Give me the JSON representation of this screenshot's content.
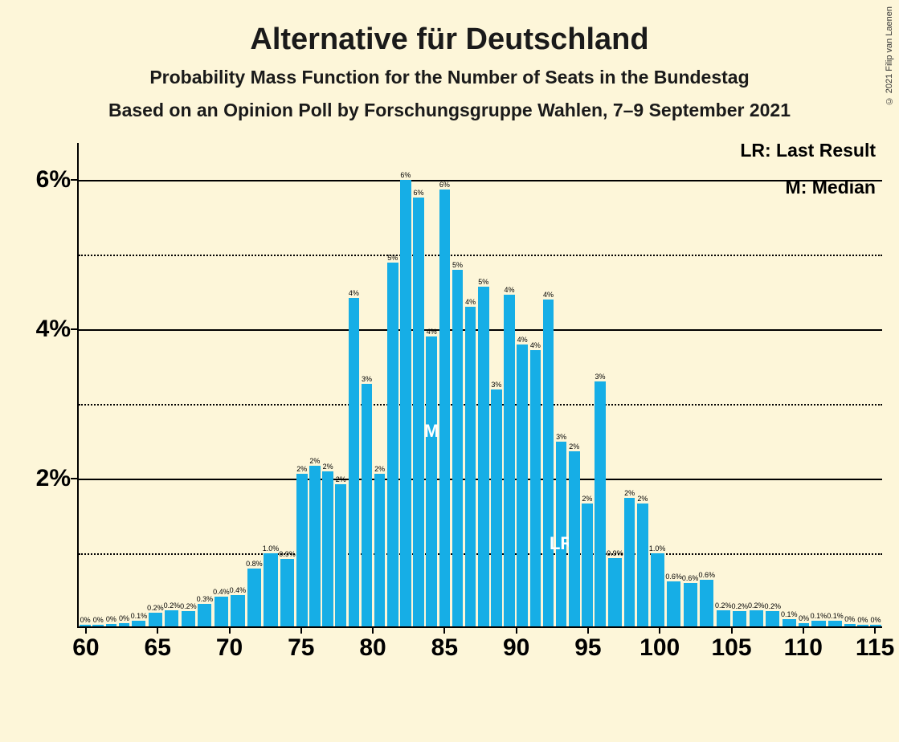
{
  "title": "Alternative für Deutschland",
  "subtitle1": "Probability Mass Function for the Number of Seats in the Bundestag",
  "subtitle2": "Based on an Opinion Poll by Forschungsgruppe Wahlen, 7–9 September 2021",
  "copyright": "© 2021 Filip van Laenen",
  "legend": {
    "lr": "LR: Last Result",
    "m": "M: Median"
  },
  "chart": {
    "type": "bar",
    "bar_color": "#16aee6",
    "background_color": "#fdf6d9",
    "grid_solid_color": "#000000",
    "grid_dotted_color": "#000000",
    "axis_color": "#000000",
    "x_start": 60,
    "x_end": 115,
    "ylim": [
      0,
      6.5
    ],
    "ytick_major": [
      2,
      4,
      6
    ],
    "ytick_minor": [
      1,
      3,
      5
    ],
    "xtick_major": [
      60,
      65,
      70,
      75,
      80,
      85,
      90,
      95,
      100,
      105,
      110,
      115
    ],
    "median_seat": 84,
    "lr_seat": 94,
    "title_fontsize": 38,
    "subtitle_fontsize": 23,
    "axis_label_fontsize": 30,
    "bar_label_fontsize": 9,
    "bars": [
      {
        "x": 60,
        "v": 0.02,
        "l": "0%"
      },
      {
        "x": 61,
        "v": 0.02,
        "l": "0%"
      },
      {
        "x": 62,
        "v": 0.03,
        "l": "0%"
      },
      {
        "x": 63,
        "v": 0.04,
        "l": "0%"
      },
      {
        "x": 64,
        "v": 0.08,
        "l": "0.1%"
      },
      {
        "x": 65,
        "v": 0.18,
        "l": "0.2%"
      },
      {
        "x": 66,
        "v": 0.22,
        "l": "0.2%"
      },
      {
        "x": 67,
        "v": 0.2,
        "l": "0.2%"
      },
      {
        "x": 68,
        "v": 0.3,
        "l": "0.3%"
      },
      {
        "x": 69,
        "v": 0.4,
        "l": "0.4%"
      },
      {
        "x": 70,
        "v": 0.42,
        "l": "0.4%"
      },
      {
        "x": 71,
        "v": 0.78,
        "l": "0.8%"
      },
      {
        "x": 72,
        "v": 0.98,
        "l": "1.0%"
      },
      {
        "x": 73,
        "v": 0.9,
        "l": "0.9%"
      },
      {
        "x": 74,
        "v": 2.05,
        "l": "2%"
      },
      {
        "x": 75,
        "v": 2.15,
        "l": "2%"
      },
      {
        "x": 76,
        "v": 2.08,
        "l": "2%"
      },
      {
        "x": 77,
        "v": 1.9,
        "l": "2%"
      },
      {
        "x": 78,
        "v": 4.4,
        "l": "4%"
      },
      {
        "x": 79,
        "v": 3.25,
        "l": "3%"
      },
      {
        "x": 80,
        "v": 2.05,
        "l": "2%"
      },
      {
        "x": 81,
        "v": 4.88,
        "l": "5%"
      },
      {
        "x": 82,
        "v": 5.98,
        "l": "6%"
      },
      {
        "x": 83,
        "v": 5.75,
        "l": "6%"
      },
      {
        "x": 84,
        "v": 3.88,
        "l": "4%"
      },
      {
        "x": 85,
        "v": 5.85,
        "l": "6%"
      },
      {
        "x": 86,
        "v": 4.78,
        "l": "5%"
      },
      {
        "x": 87,
        "v": 4.28,
        "l": "4%"
      },
      {
        "x": 88,
        "v": 4.55,
        "l": "5%"
      },
      {
        "x": 89,
        "v": 3.18,
        "l": "3%"
      },
      {
        "x": 90,
        "v": 4.45,
        "l": "4%"
      },
      {
        "x": 91,
        "v": 3.78,
        "l": "4%"
      },
      {
        "x": 92,
        "v": 3.7,
        "l": "4%"
      },
      {
        "x": 93,
        "v": 4.38,
        "l": "4%"
      },
      {
        "x": 94,
        "v": 2.48,
        "l": "3%"
      },
      {
        "x": 95,
        "v": 2.35,
        "l": "2%"
      },
      {
        "x": 96,
        "v": 1.65,
        "l": "2%"
      },
      {
        "x": 97,
        "v": 3.28,
        "l": "3%"
      },
      {
        "x": 98,
        "v": 0.92,
        "l": "0.9%"
      },
      {
        "x": 99,
        "v": 1.72,
        "l": "2%"
      },
      {
        "x": 100,
        "v": 1.65,
        "l": "2%"
      },
      {
        "x": 101,
        "v": 0.98,
        "l": "1.0%"
      },
      {
        "x": 102,
        "v": 0.6,
        "l": "0.6%"
      },
      {
        "x": 103,
        "v": 0.58,
        "l": "0.6%"
      },
      {
        "x": 104,
        "v": 0.62,
        "l": "0.6%"
      },
      {
        "x": 105,
        "v": 0.22,
        "l": "0.2%"
      },
      {
        "x": 106,
        "v": 0.2,
        "l": "0.2%"
      },
      {
        "x": 107,
        "v": 0.22,
        "l": "0.2%"
      },
      {
        "x": 108,
        "v": 0.2,
        "l": "0.2%"
      },
      {
        "x": 109,
        "v": 0.1,
        "l": "0.1%"
      },
      {
        "x": 110,
        "v": 0.04,
        "l": "0%"
      },
      {
        "x": 111,
        "v": 0.08,
        "l": "0.1%"
      },
      {
        "x": 112,
        "v": 0.08,
        "l": "0.1%"
      },
      {
        "x": 113,
        "v": 0.03,
        "l": "0%"
      },
      {
        "x": 114,
        "v": 0.02,
        "l": "0%"
      },
      {
        "x": 115,
        "v": 0.02,
        "l": "0%"
      }
    ]
  }
}
